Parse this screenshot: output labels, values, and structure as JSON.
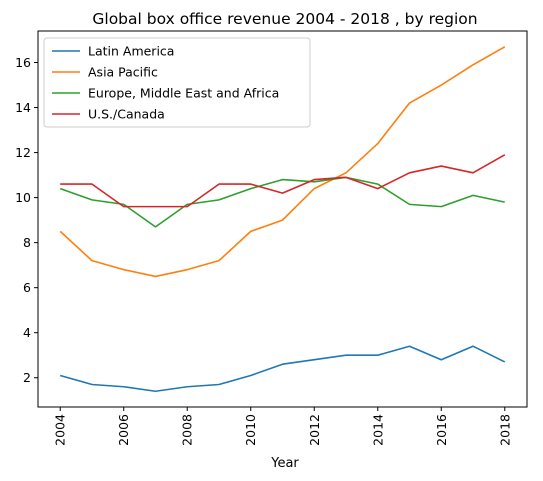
{
  "chart_data": {
    "type": "line",
    "title": "Global box office revenue 2004 - 2018 , by region",
    "xlabel": "Year",
    "ylabel": "",
    "x": [
      2004,
      2005,
      2006,
      2007,
      2008,
      2009,
      2010,
      2011,
      2012,
      2013,
      2014,
      2015,
      2016,
      2017,
      2018
    ],
    "xlim": [
      2003.3,
      2018.7
    ],
    "ylim": [
      0.7,
      17.4
    ],
    "x_ticks": [
      "2004",
      "2006",
      "2008",
      "2010",
      "2012",
      "2014",
      "2016",
      "2018"
    ],
    "y_ticks": [
      "2",
      "4",
      "6",
      "8",
      "10",
      "12",
      "14",
      "16"
    ],
    "x_tick_rotation": "vertical",
    "grid": false,
    "legend_position": "top-left",
    "series": [
      {
        "name": "Latin America",
        "color": "#1f77b4",
        "values": [
          2.1,
          1.7,
          1.6,
          1.4,
          1.6,
          1.7,
          2.1,
          2.6,
          2.8,
          3.0,
          3.0,
          3.4,
          2.8,
          3.4,
          2.7
        ]
      },
      {
        "name": "Asia Pacific",
        "color": "#ff7f0e",
        "values": [
          8.5,
          7.2,
          6.8,
          6.5,
          6.8,
          7.2,
          8.5,
          9.0,
          10.4,
          11.1,
          12.4,
          14.2,
          15.0,
          15.9,
          16.7
        ]
      },
      {
        "name": "Europe, Middle East and Africa",
        "color": "#2ca02c",
        "values": [
          10.4,
          9.9,
          9.7,
          8.7,
          9.7,
          9.9,
          10.4,
          10.8,
          10.7,
          10.9,
          10.6,
          9.7,
          9.6,
          10.1,
          9.8
        ]
      },
      {
        "name": "U.S./Canada",
        "color": "#d62728",
        "values": [
          10.6,
          10.6,
          9.6,
          9.6,
          9.6,
          10.6,
          10.6,
          10.2,
          10.8,
          10.9,
          10.4,
          11.1,
          11.4,
          11.1,
          11.9
        ]
      }
    ]
  }
}
